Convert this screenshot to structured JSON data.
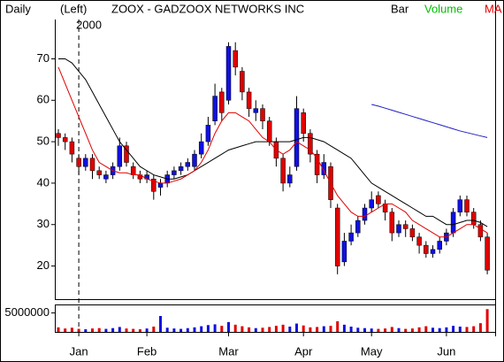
{
  "chart_data": {
    "type": "candlestick",
    "title": "ZOOX - GADZOOX NETWORKS INC",
    "period": "Daily",
    "scale_side": "(Left)",
    "style": "Bar",
    "volume_label": "Volume",
    "ma_label": "MA",
    "year_label": "2000",
    "xticks": [
      {
        "value": 3,
        "label": "Jan"
      },
      {
        "value": 13,
        "label": "Feb"
      },
      {
        "value": 25,
        "label": "Mar"
      },
      {
        "value": 36,
        "label": "Apr"
      },
      {
        "value": 46,
        "label": "May"
      },
      {
        "value": 57,
        "label": "Jun"
      }
    ],
    "ylim": [
      12,
      79.5
    ],
    "yticks": [
      20,
      30,
      40,
      50,
      60,
      70
    ],
    "grid": false,
    "up_color": "#1010e0",
    "down_color": "#e00000",
    "open": [
      52,
      51,
      50,
      46,
      44,
      46,
      43,
      41,
      42,
      44,
      49,
      44,
      42,
      41,
      41,
      39,
      40,
      42,
      43,
      44,
      44,
      47,
      50,
      55,
      62,
      60,
      72,
      67,
      62,
      57,
      58,
      55,
      50,
      46,
      40,
      44,
      57,
      52,
      47,
      42,
      44,
      34,
      21,
      26,
      28,
      31,
      34,
      37,
      35,
      33,
      28,
      30,
      29,
      27,
      25,
      23,
      24,
      26,
      28,
      33,
      36,
      33,
      30,
      27
    ],
    "high": [
      53,
      52,
      51,
      47,
      47,
      47,
      44,
      43,
      45,
      51,
      50,
      45,
      43,
      43,
      42,
      41,
      43,
      44,
      45,
      46,
      48,
      52,
      56,
      64,
      63,
      74,
      74,
      68,
      63,
      60,
      59,
      56,
      51,
      47,
      44,
      61,
      58,
      53,
      48,
      47,
      45,
      35,
      28,
      30,
      32,
      35,
      38,
      38,
      36,
      34,
      31,
      31,
      30,
      28,
      26,
      25,
      27,
      29,
      34,
      37,
      37,
      34,
      31,
      28
    ],
    "low": [
      49,
      48,
      45,
      42,
      43,
      41,
      41,
      40,
      41,
      43,
      44,
      41,
      40,
      40,
      36,
      37,
      39,
      41,
      42,
      43,
      43,
      46,
      49,
      54,
      55,
      59,
      66,
      60,
      56,
      55,
      53,
      49,
      44,
      38,
      39,
      43,
      50,
      45,
      40,
      41,
      34,
      18,
      20,
      25,
      27,
      30,
      33,
      34,
      31,
      26,
      27,
      27,
      26,
      23,
      22,
      22,
      23,
      25,
      27,
      32,
      32,
      29,
      26,
      18
    ],
    "close": [
      51,
      50,
      47,
      44,
      46,
      43,
      42,
      42,
      44,
      49,
      45,
      42,
      41,
      42,
      38,
      40,
      42,
      43,
      44,
      45,
      47,
      50,
      54,
      61,
      57,
      73,
      68,
      62,
      58,
      58,
      55,
      50,
      46,
      40,
      42,
      58,
      52,
      47,
      42,
      45,
      36,
      20,
      26,
      28,
      31,
      34,
      36,
      35,
      33,
      28,
      30,
      29,
      27,
      25,
      23,
      24,
      26,
      28,
      33,
      36,
      33,
      30,
      27,
      19
    ],
    "moving_averages": [
      {
        "color": "#000000",
        "values": [
          70,
          70,
          69,
          67,
          65,
          62,
          59,
          56,
          53,
          50,
          48,
          46,
          44,
          43,
          42,
          41.5,
          41,
          41,
          41.5,
          42,
          43,
          44,
          45,
          46,
          47,
          48,
          48.5,
          49,
          49.5,
          50,
          50,
          50,
          50,
          50,
          50,
          50.5,
          51,
          51,
          50.5,
          50,
          49,
          48,
          47,
          46,
          44,
          42,
          40,
          39,
          38,
          37,
          36,
          35,
          34,
          33,
          32,
          32,
          31,
          30,
          30,
          30.5,
          31,
          31,
          30.5,
          29.5
        ]
      },
      {
        "color": "#e00000",
        "values": [
          68,
          64,
          60,
          56,
          52,
          48,
          45,
          44,
          43,
          42.5,
          42.5,
          42,
          42,
          41,
          40.5,
          40,
          40,
          40.5,
          41,
          42,
          43,
          45,
          48,
          52,
          55,
          57,
          57,
          56,
          55,
          53,
          51,
          50,
          48,
          47,
          48,
          50,
          49,
          48,
          46,
          43,
          40,
          37,
          35,
          33,
          32,
          32,
          33,
          34,
          35,
          35,
          34,
          33,
          31,
          30,
          29,
          28,
          27,
          27,
          28,
          29,
          30,
          30,
          29,
          28
        ]
      },
      {
        "color": "#2020c0",
        "values": [
          null,
          null,
          null,
          null,
          null,
          null,
          null,
          null,
          null,
          null,
          null,
          null,
          null,
          null,
          null,
          null,
          null,
          null,
          null,
          null,
          null,
          null,
          null,
          null,
          null,
          null,
          null,
          null,
          null,
          null,
          null,
          null,
          null,
          null,
          null,
          null,
          null,
          null,
          null,
          null,
          null,
          null,
          null,
          null,
          null,
          null,
          59,
          58.6,
          58.1,
          57.6,
          57.1,
          56.6,
          56.1,
          55.6,
          55.1,
          54.6,
          54.1,
          53.6,
          53.1,
          52.6,
          52.2,
          51.8,
          51.4,
          51
        ]
      }
    ],
    "volume": {
      "values": [
        1200000,
        900000,
        1100000,
        800000,
        700000,
        900000,
        1000000,
        800000,
        1000000,
        1300000,
        900000,
        800000,
        700000,
        900000,
        1400000,
        4200000,
        1100000,
        900000,
        800000,
        1000000,
        1200000,
        1500000,
        1800000,
        2000000,
        1600000,
        2600000,
        1900000,
        1500000,
        1200000,
        1000000,
        1100000,
        1300000,
        1600000,
        1900000,
        1400000,
        2200000,
        1700000,
        1200000,
        1300000,
        1500000,
        1600000,
        2800000,
        1900000,
        1400000,
        1100000,
        1000000,
        900000,
        800000,
        900000,
        1300000,
        1000000,
        800000,
        900000,
        1200000,
        1500000,
        1100000,
        1000000,
        1200000,
        1600000,
        1400000,
        1300000,
        1500000,
        2300000,
        6000000
      ],
      "ylim": [
        0,
        7000000
      ],
      "yticks": [
        5000000
      ]
    }
  }
}
